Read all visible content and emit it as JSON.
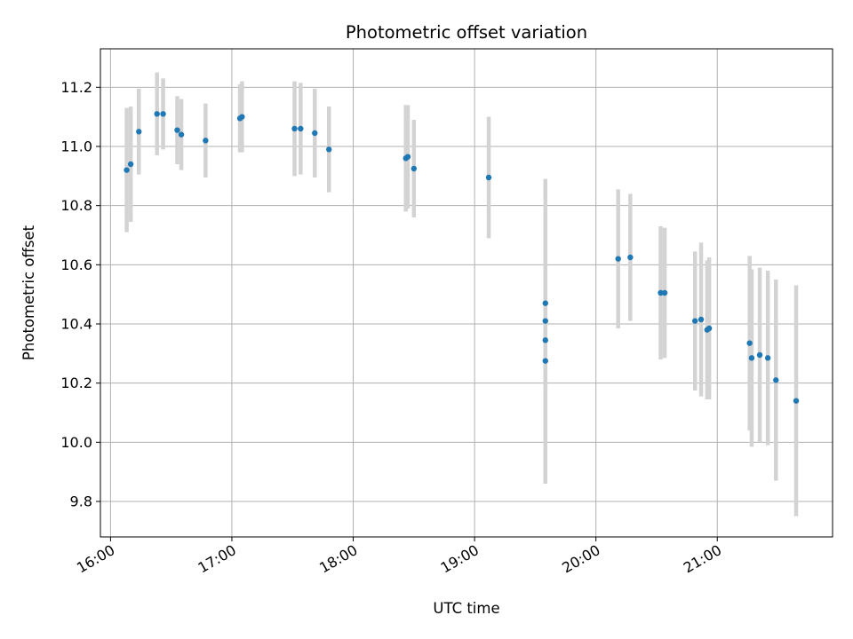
{
  "chart_data": {
    "type": "scatter",
    "title": "Photometric offset variation",
    "xlabel": "UTC time",
    "ylabel": "Photometric offset",
    "x_unit": "UTC time of day (HH:MM)",
    "xlim": [
      "15:55",
      "21:57"
    ],
    "ylim": [
      9.68,
      11.33
    ],
    "x_ticks": [
      "16:00",
      "17:00",
      "18:00",
      "19:00",
      "20:00",
      "21:00"
    ],
    "y_ticks": [
      9.8,
      10.0,
      10.2,
      10.4,
      10.6,
      10.8,
      11.0,
      11.2
    ],
    "grid": true,
    "colors": {
      "point": "#1f77b4",
      "errorbar": "#d3d3d3",
      "grid": "#b0b0b0",
      "axes": "#000000"
    },
    "points": [
      {
        "x": "16:08",
        "y": 10.92,
        "yerr": 0.21
      },
      {
        "x": "16:10",
        "y": 10.94,
        "yerr": 0.195
      },
      {
        "x": "16:14",
        "y": 11.05,
        "yerr": 0.145
      },
      {
        "x": "16:23",
        "y": 11.11,
        "yerr": 0.14
      },
      {
        "x": "16:26",
        "y": 11.11,
        "yerr": 0.12
      },
      {
        "x": "16:33",
        "y": 11.055,
        "yerr": 0.115
      },
      {
        "x": "16:35",
        "y": 11.04,
        "yerr": 0.12
      },
      {
        "x": "16:47",
        "y": 11.02,
        "yerr": 0.125
      },
      {
        "x": "17:04",
        "y": 11.095,
        "yerr": 0.115
      },
      {
        "x": "17:05",
        "y": 11.1,
        "yerr": 0.12
      },
      {
        "x": "17:31",
        "y": 11.06,
        "yerr": 0.16
      },
      {
        "x": "17:34",
        "y": 11.06,
        "yerr": 0.155
      },
      {
        "x": "17:41",
        "y": 11.045,
        "yerr": 0.15
      },
      {
        "x": "17:48",
        "y": 10.99,
        "yerr": 0.145
      },
      {
        "x": "18:26",
        "y": 10.96,
        "yerr": 0.18
      },
      {
        "x": "18:27",
        "y": 10.965,
        "yerr": 0.175
      },
      {
        "x": "18:30",
        "y": 10.925,
        "yerr": 0.165
      },
      {
        "x": "19:07",
        "y": 10.895,
        "yerr": 0.205
      },
      {
        "x": "19:35",
        "y": 10.47,
        "yerr": 0.42
      },
      {
        "x": "19:35",
        "y": 10.41,
        "yerr": 0.37
      },
      {
        "x": "19:35",
        "y": 10.345,
        "yerr": 0.35
      },
      {
        "x": "19:35",
        "y": 10.275,
        "yerr": 0.415
      },
      {
        "x": "20:11",
        "y": 10.62,
        "yerr": 0.235
      },
      {
        "x": "20:17",
        "y": 10.625,
        "yerr": 0.215
      },
      {
        "x": "20:32",
        "y": 10.505,
        "yerr": 0.225
      },
      {
        "x": "20:34",
        "y": 10.505,
        "yerr": 0.22
      },
      {
        "x": "20:49",
        "y": 10.41,
        "yerr": 0.235
      },
      {
        "x": "20:52",
        "y": 10.415,
        "yerr": 0.26
      },
      {
        "x": "20:55",
        "y": 10.38,
        "yerr": 0.235
      },
      {
        "x": "20:56",
        "y": 10.385,
        "yerr": 0.24
      },
      {
        "x": "21:16",
        "y": 10.335,
        "yerr": 0.295
      },
      {
        "x": "21:17",
        "y": 10.285,
        "yerr": 0.3
      },
      {
        "x": "21:21",
        "y": 10.295,
        "yerr": 0.295
      },
      {
        "x": "21:25",
        "y": 10.285,
        "yerr": 0.295
      },
      {
        "x": "21:29",
        "y": 10.21,
        "yerr": 0.34
      },
      {
        "x": "21:39",
        "y": 10.14,
        "yerr": 0.39
      }
    ]
  }
}
